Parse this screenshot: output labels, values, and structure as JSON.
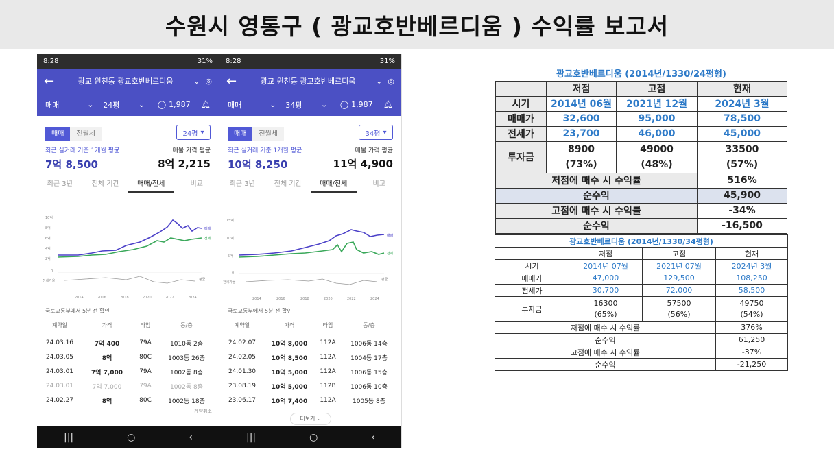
{
  "title": "수원시 영통구 ( 광교호반베르디움 ) 수익률 보고서",
  "phones": [
    {
      "status_time": "8:28",
      "status_right": "31%",
      "location": "광교 원천동 광교호반베르디움",
      "trade_type": "매매",
      "size": "24평",
      "comment_count": "1,987",
      "chip_on": "매매",
      "chip_off": "전월세",
      "size_select": "24평",
      "avg_label": "최근 실거래 기준 1개월 평균",
      "avg_value": "7억 8,500",
      "ask_label": "매물 가격 평균",
      "ask_value": "8억 2,215",
      "tabs": [
        "최근 3년",
        "전체 기간",
        "매매/전세",
        "비교"
      ],
      "chart_legend": {
        "sale": "매매",
        "jeonse": "전세",
        "ratio_label": "전세가율",
        "ratio_right": "평균"
      },
      "y_ticks": [
        "10억",
        "8억",
        "6억",
        "4억",
        "2억",
        "0"
      ],
      "x_ticks": [
        "2014",
        "2016",
        "2018",
        "2020",
        "2022",
        "2024"
      ],
      "source": "국토교통부에서 5분 전 확인",
      "table_head": [
        "계약일",
        "가격",
        "타입",
        "동/층"
      ],
      "rows": [
        [
          "24.03.16",
          "7억 400",
          "79A",
          "1010동 2층"
        ],
        [
          "24.03.05",
          "8억",
          "80C",
          "1003동 26층"
        ],
        [
          "24.03.01",
          "7억 7,000",
          "79A",
          "1002동 8층"
        ],
        [
          "24.03.01",
          "7억 7,000",
          "79A",
          "1002동 8층"
        ],
        [
          "24.02.27",
          "8억",
          "80C",
          "1002동 18층"
        ]
      ],
      "footnote": "계약취소"
    },
    {
      "status_time": "8:28",
      "status_right": "31%",
      "location": "광교 원천동 광교호반베르디움",
      "trade_type": "매매",
      "size": "34평",
      "comment_count": "1,987",
      "chip_on": "매매",
      "chip_off": "전월세",
      "size_select": "34평",
      "avg_label": "최근 실거래 기준 1개월 평균",
      "avg_value": "10억 8,250",
      "ask_label": "매물 가격 평균",
      "ask_value": "11억 4,900",
      "tabs": [
        "최근 3년",
        "전체 기간",
        "매매/전세",
        "비교"
      ],
      "chart_legend": {
        "sale": "매매",
        "jeonse": "전세",
        "ratio_label": "전세가율",
        "ratio_right": "평균"
      },
      "y_ticks": [
        "15억",
        "10억",
        "5억",
        "0"
      ],
      "x_ticks": [
        "2014",
        "2016",
        "2018",
        "2020",
        "2022",
        "2024"
      ],
      "source": "국토교통부에서 5분 전 확인",
      "table_head": [
        "계약일",
        "가격",
        "타입",
        "동/층"
      ],
      "rows": [
        [
          "24.02.07",
          "10억 8,000",
          "112A",
          "1006동 14층"
        ],
        [
          "24.02.05",
          "10억 8,500",
          "112A",
          "1004동 17층"
        ],
        [
          "24.01.30",
          "10억 5,000",
          "112A",
          "1006동 15층"
        ],
        [
          "23.08.19",
          "10억 5,000",
          "112B",
          "1006동 10층"
        ],
        [
          "23.06.17",
          "10억 7,400",
          "112A",
          "1005동 8층"
        ]
      ],
      "more": "더보기"
    }
  ],
  "table1": {
    "caption": "광교호반베르디움 (2014년/1330/24평형)",
    "cols": [
      "저점",
      "고점",
      "현재"
    ],
    "period_label": "시기",
    "periods": [
      "2014년 06월",
      "2021년 12월",
      "2024년 3월"
    ],
    "sale_label": "매매가",
    "sale": [
      "32,600",
      "95,000",
      "78,500"
    ],
    "jeonse_label": "전세가",
    "jeonse": [
      "23,700",
      "46,000",
      "45,000"
    ],
    "invest_label": "투자금",
    "invest": [
      "8900",
      "49000",
      "33500"
    ],
    "invest_pct": [
      "(73%)",
      "(48%)",
      "(57%)"
    ],
    "low_buy_label": "저점에 매수 시 수익률",
    "low_buy": "516%",
    "net1_label": "순수익",
    "net1": "45,900",
    "high_buy_label": "고점에 매수 시 수익률",
    "high_buy": "-34%",
    "net2_label": "순수익",
    "net2": "-16,500"
  },
  "table2": {
    "caption": "광교호반베르디움 (2014년/1330/34평형)",
    "cols": [
      "저점",
      "고점",
      "현재"
    ],
    "period_label": "시기",
    "periods": [
      "2014년 07월",
      "2021년 07월",
      "2024년 3월"
    ],
    "sale_label": "매매가",
    "sale": [
      "47,000",
      "129,500",
      "108,250"
    ],
    "jeonse_label": "전세가",
    "jeonse": [
      "30,700",
      "72,000",
      "58,500"
    ],
    "invest_label": "투자금",
    "invest": [
      "16300",
      "57500",
      "49750"
    ],
    "invest_pct": [
      "(65%)",
      "(56%)",
      "(54%)"
    ],
    "low_buy_label": "저점에 매수 시 수익률",
    "low_buy": "376%",
    "net1_label": "순수익",
    "net1": "61,250",
    "high_buy_label": "고점에 매수 시 수익률",
    "high_buy": "-37%",
    "net2_label": "순수익",
    "net2": "-21,250"
  }
}
